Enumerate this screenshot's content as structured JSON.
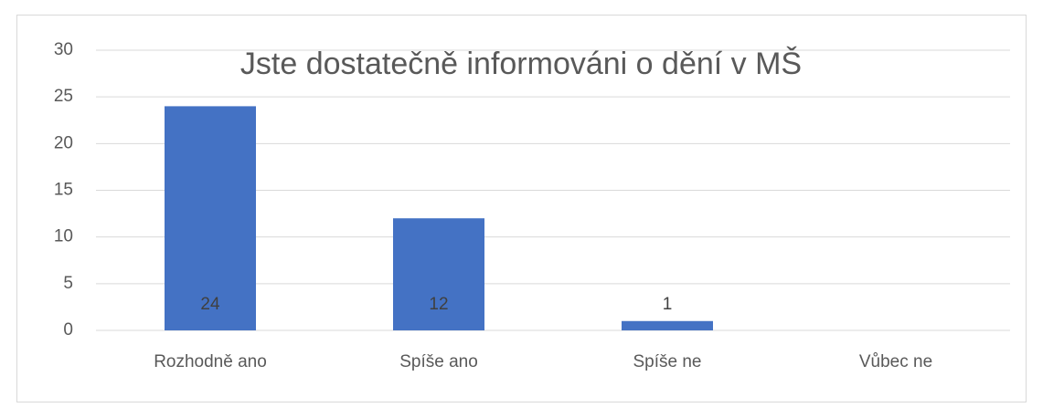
{
  "chart_data": {
    "type": "bar",
    "title": "Jste dostatečně informováni o dění v MŠ",
    "categories": [
      "Rozhodně ano",
      "Spíše ano",
      "Spíše ne",
      "Vůbec ne"
    ],
    "values": [
      24,
      12,
      1,
      null
    ],
    "color": "#4472c4",
    "ylim": [
      0,
      30
    ],
    "yticks": [
      0,
      5,
      10,
      15,
      20,
      25,
      30
    ],
    "grid": true
  }
}
